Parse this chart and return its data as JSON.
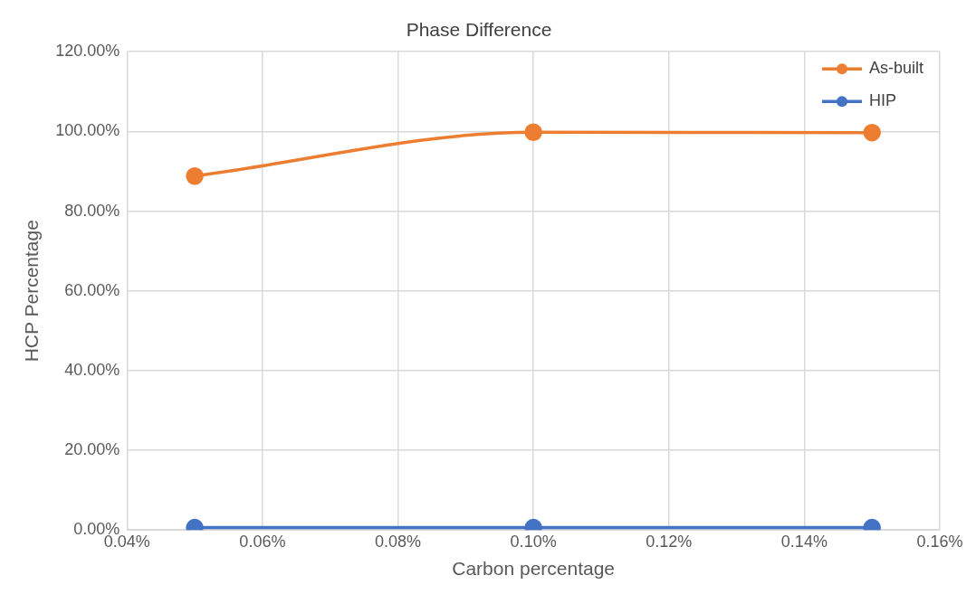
{
  "chart_data": {
    "type": "line",
    "title": "Phase Difference",
    "xlabel": "Carbon percentage",
    "ylabel": "HCP Percentage",
    "x": [
      0.05,
      0.1,
      0.15
    ],
    "series": [
      {
        "name": "As-built",
        "color": "#ed7d31",
        "values": [
          88.8,
          99.8,
          99.7
        ]
      },
      {
        "name": "HIP",
        "color": "#4472c4",
        "values": [
          0.6,
          0.6,
          0.6
        ]
      }
    ],
    "xlim": [
      0.04,
      0.16
    ],
    "xticks": [
      {
        "value": 0.04,
        "label": "0.04%"
      },
      {
        "value": 0.06,
        "label": "0.06%"
      },
      {
        "value": 0.08,
        "label": "0.08%"
      },
      {
        "value": 0.1,
        "label": "0.10%"
      },
      {
        "value": 0.12,
        "label": "0.12%"
      },
      {
        "value": 0.14,
        "label": "0.14%"
      },
      {
        "value": 0.16,
        "label": "0.16%"
      }
    ],
    "ylim": [
      0,
      120
    ],
    "yticks": [
      {
        "value": 0,
        "label": "0.00%"
      },
      {
        "value": 20,
        "label": "20.00%"
      },
      {
        "value": 40,
        "label": "40.00%"
      },
      {
        "value": 60,
        "label": "60.00%"
      },
      {
        "value": 80,
        "label": "80.00%"
      },
      {
        "value": 100,
        "label": "100.00%"
      },
      {
        "value": 120,
        "label": "120.00%"
      }
    ],
    "grid": true,
    "legend": "top right",
    "marker": "circle",
    "line_style": "solid"
  }
}
